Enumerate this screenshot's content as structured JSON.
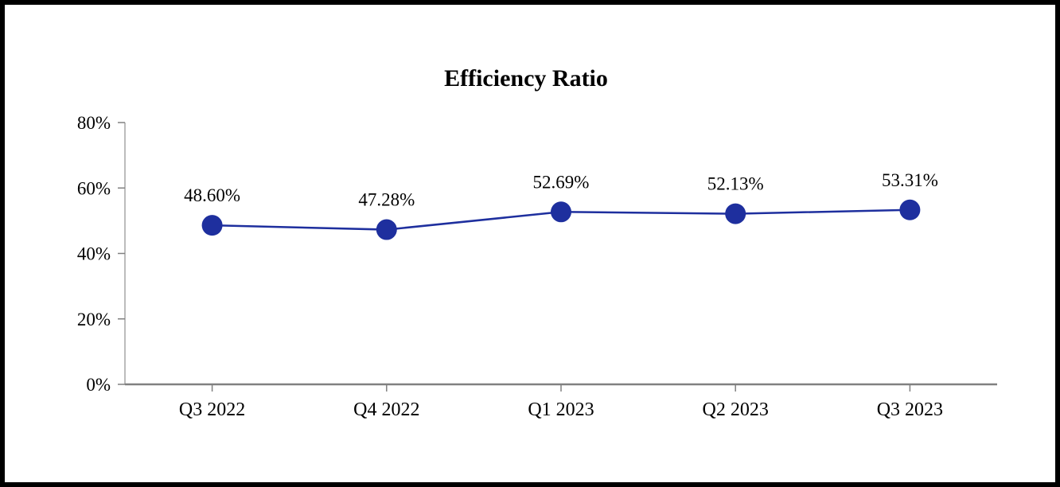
{
  "chart_data": {
    "type": "line",
    "title": "Efficiency Ratio",
    "categories": [
      "Q3 2022",
      "Q4 2022",
      "Q1 2023",
      "Q2 2023",
      "Q3 2023"
    ],
    "series": [
      {
        "name": "Efficiency Ratio",
        "values": [
          48.6,
          47.28,
          52.69,
          52.13,
          53.31
        ]
      }
    ],
    "data_labels": [
      "48.60%",
      "47.28%",
      "52.69%",
      "52.13%",
      "53.31%"
    ],
    "y_ticks": [
      {
        "value": 0,
        "label": "0%"
      },
      {
        "value": 20,
        "label": "20%"
      },
      {
        "value": 40,
        "label": "40%"
      },
      {
        "value": 60,
        "label": "60%"
      },
      {
        "value": 80,
        "label": "80%"
      }
    ],
    "ylim": [
      0,
      80
    ],
    "grid": false,
    "legend": "none",
    "colors": {
      "line": "#1E2F9E",
      "marker": "#1E2F9E",
      "x_axis": "#808080",
      "y_axis": "#A6A6A6",
      "tick": "#808080",
      "text": "#000000",
      "frame_border": "#000000"
    }
  }
}
